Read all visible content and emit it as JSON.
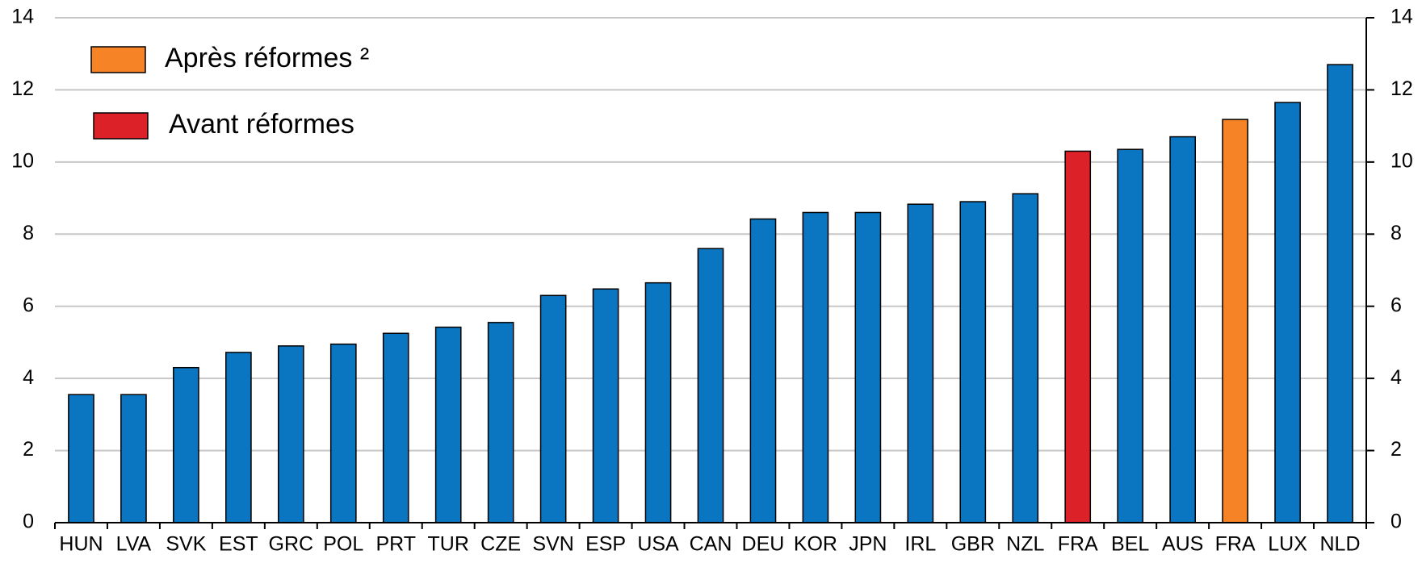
{
  "chart_data": {
    "type": "bar",
    "categories": [
      "HUN",
      "LVA",
      "SVK",
      "EST",
      "GRC",
      "POL",
      "PRT",
      "TUR",
      "CZE",
      "SVN",
      "ESP",
      "USA",
      "CAN",
      "DEU",
      "KOR",
      "JPN",
      "IRL",
      "GBR",
      "NZL",
      "FRA",
      "BEL",
      "AUS",
      "FRA",
      "LUX",
      "NLD"
    ],
    "values": [
      3.55,
      3.55,
      4.3,
      4.72,
      4.9,
      4.95,
      5.25,
      5.42,
      5.55,
      6.3,
      6.48,
      6.65,
      7.6,
      8.42,
      8.6,
      8.6,
      8.83,
      8.9,
      9.12,
      10.3,
      10.35,
      10.7,
      11.18,
      11.65,
      12.7
    ],
    "colors": [
      "#0a75c0",
      "#0a75c0",
      "#0a75c0",
      "#0a75c0",
      "#0a75c0",
      "#0a75c0",
      "#0a75c0",
      "#0a75c0",
      "#0a75c0",
      "#0a75c0",
      "#0a75c0",
      "#0a75c0",
      "#0a75c0",
      "#0a75c0",
      "#0a75c0",
      "#0a75c0",
      "#0a75c0",
      "#0a75c0",
      "#0a75c0",
      "#dc2228",
      "#0a75c0",
      "#0a75c0",
      "#f68426",
      "#0a75c0",
      "#0a75c0"
    ],
    "legend": [
      {
        "name": "Après réformes ²",
        "color": "#f68426"
      },
      {
        "name": "Avant réformes",
        "color": "#dc2228"
      }
    ],
    "ylim": [
      0,
      14
    ],
    "yticks": [
      0,
      2,
      4,
      6,
      8,
      10,
      12,
      14
    ],
    "grid": true
  }
}
